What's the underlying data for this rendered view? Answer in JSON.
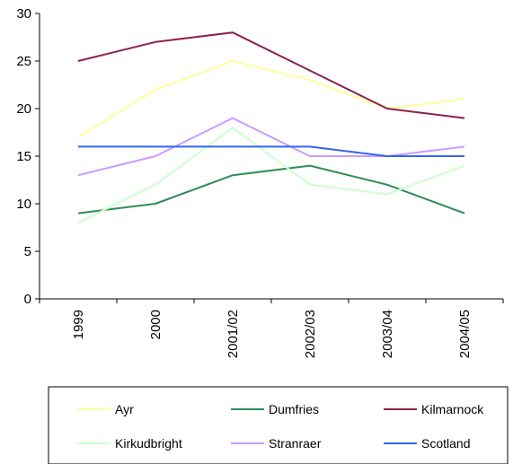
{
  "chart_data": {
    "type": "line",
    "title": "",
    "xlabel": "",
    "ylabel": "",
    "categories": [
      "1999",
      "2000",
      "2001/02",
      "2002/03",
      "2003/04",
      "2004/05"
    ],
    "ylim": [
      0,
      30
    ],
    "yticks": [
      "0",
      "5",
      "10",
      "15",
      "20",
      "25",
      "30"
    ],
    "grid": false,
    "legend_position": "bottom",
    "series": [
      {
        "name": "Ayr",
        "color": "#ffff99",
        "values": [
          17,
          22,
          25,
          23,
          20,
          21
        ]
      },
      {
        "name": "Dumfries",
        "color": "#2e8b57",
        "values": [
          9,
          10,
          13,
          14,
          12,
          9
        ]
      },
      {
        "name": "Kilmarnock",
        "color": "#8b2252",
        "values": [
          25,
          27,
          28,
          24,
          20,
          19
        ]
      },
      {
        "name": "Kirkudbright",
        "color": "#ccffcc",
        "values": [
          8,
          12,
          18,
          12,
          11,
          14
        ]
      },
      {
        "name": "Stranraer",
        "color": "#cc99ff",
        "values": [
          13,
          15,
          19,
          15,
          15,
          16
        ]
      },
      {
        "name": "Scotland",
        "color": "#3366ee",
        "values": [
          16,
          16,
          16,
          16,
          15,
          15
        ]
      }
    ]
  }
}
